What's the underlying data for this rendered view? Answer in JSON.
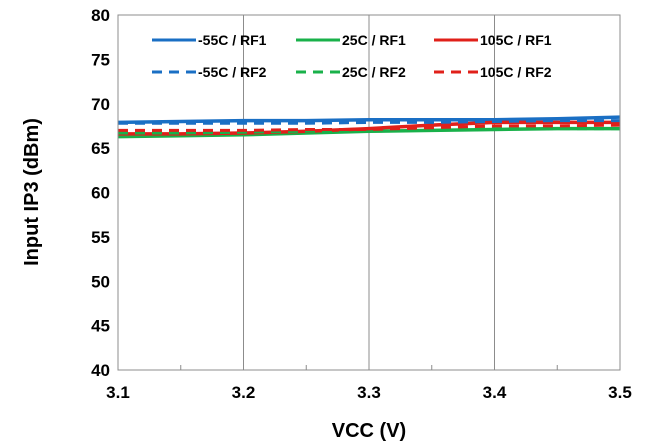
{
  "chart_data": {
    "type": "line",
    "xlabel": "VCC (V)",
    "ylabel": "Input IP3 (dBm)",
    "xlim": [
      3.1,
      3.5
    ],
    "ylim": [
      40,
      80
    ],
    "x_ticks": [
      "3.1",
      "3.2",
      "3.3",
      "3.4",
      "3.5"
    ],
    "y_ticks": [
      "40",
      "45",
      "50",
      "55",
      "60",
      "65",
      "70",
      "75",
      "80"
    ],
    "grid": "vertical",
    "legend_position": "top",
    "x": [
      3.1,
      3.15,
      3.2,
      3.25,
      3.3,
      3.35,
      3.4,
      3.45,
      3.5
    ],
    "series": [
      {
        "name": "-55C / RF1",
        "color": "#1a6fc4",
        "dash": "solid",
        "values": [
          67.9,
          68.0,
          68.1,
          68.1,
          68.2,
          68.2,
          68.2,
          68.3,
          68.5
        ]
      },
      {
        "name": "25C / RF1",
        "color": "#19b14a",
        "dash": "solid",
        "values": [
          66.3,
          66.4,
          66.5,
          66.7,
          66.9,
          67.0,
          67.1,
          67.2,
          67.2
        ]
      },
      {
        "name": "105C / RF1",
        "color": "#e0201a",
        "dash": "solid",
        "values": [
          66.6,
          66.6,
          66.7,
          66.9,
          67.2,
          67.6,
          67.9,
          67.9,
          67.9
        ]
      },
      {
        "name": "-55C / RF2",
        "color": "#1a6fc4",
        "dash": "dashed",
        "values": [
          67.8,
          67.8,
          67.8,
          67.8,
          67.9,
          67.9,
          68.0,
          68.1,
          68.1
        ]
      },
      {
        "name": "25C / RF2",
        "color": "#19b14a",
        "dash": "dashed",
        "values": [
          66.7,
          66.7,
          66.8,
          66.9,
          67.0,
          67.1,
          67.2,
          67.2,
          67.2
        ]
      },
      {
        "name": "105C / RF2",
        "color": "#e0201a",
        "dash": "dashed",
        "values": [
          67.0,
          67.0,
          67.0,
          67.1,
          67.1,
          67.3,
          67.5,
          67.5,
          67.6
        ]
      }
    ]
  }
}
